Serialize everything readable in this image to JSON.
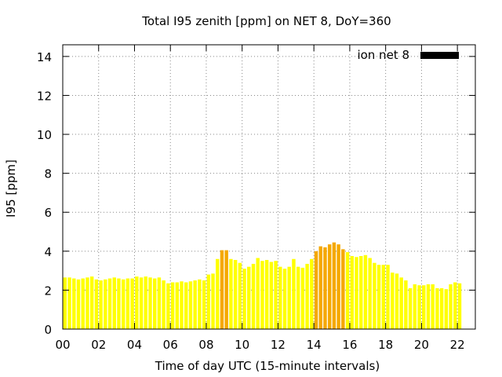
{
  "chart_data": {
    "type": "bar",
    "title": "Total I95 zenith [ppm] on NET 8, DoY=360",
    "xlabel": "Time of day UTC (15-minute intervals)",
    "ylabel": "I95 [ppm]",
    "legend": {
      "label": "ion net 8",
      "position": "top-right"
    },
    "xlim": [
      0,
      23
    ],
    "ylim": [
      0,
      14.6
    ],
    "x_ticks": [
      "00",
      "02",
      "04",
      "06",
      "08",
      "10",
      "12",
      "14",
      "16",
      "18",
      "20",
      "22"
    ],
    "y_ticks": [
      "0",
      "2",
      "4",
      "6",
      "8",
      "10",
      "12",
      "14"
    ],
    "grid": true,
    "bar_interval_hours": 0.25,
    "colors": {
      "normal": "#ffff00",
      "elevated": "#f5a800",
      "threshold": 4.0
    },
    "values": [
      2.65,
      2.65,
      2.6,
      2.55,
      2.6,
      2.65,
      2.7,
      2.55,
      2.5,
      2.55,
      2.6,
      2.65,
      2.6,
      2.55,
      2.6,
      2.6,
      2.7,
      2.65,
      2.7,
      2.65,
      2.6,
      2.65,
      2.5,
      2.35,
      2.4,
      2.4,
      2.45,
      2.4,
      2.45,
      2.5,
      2.55,
      2.5,
      2.8,
      2.85,
      3.6,
      4.05,
      4.05,
      3.6,
      3.55,
      3.4,
      3.1,
      3.2,
      3.35,
      3.65,
      3.5,
      3.55,
      3.45,
      3.5,
      3.2,
      3.1,
      3.2,
      3.6,
      3.2,
      3.15,
      3.35,
      3.6,
      4.0,
      4.25,
      4.2,
      4.35,
      4.45,
      4.35,
      4.1,
      3.95,
      3.75,
      3.7,
      3.75,
      3.8,
      3.65,
      3.4,
      3.3,
      3.3,
      3.3,
      2.9,
      2.85,
      2.65,
      2.5,
      2.1,
      2.3,
      2.25,
      2.25,
      2.3,
      2.3,
      2.1,
      2.1,
      2.05,
      2.3,
      2.4,
      2.35
    ]
  }
}
